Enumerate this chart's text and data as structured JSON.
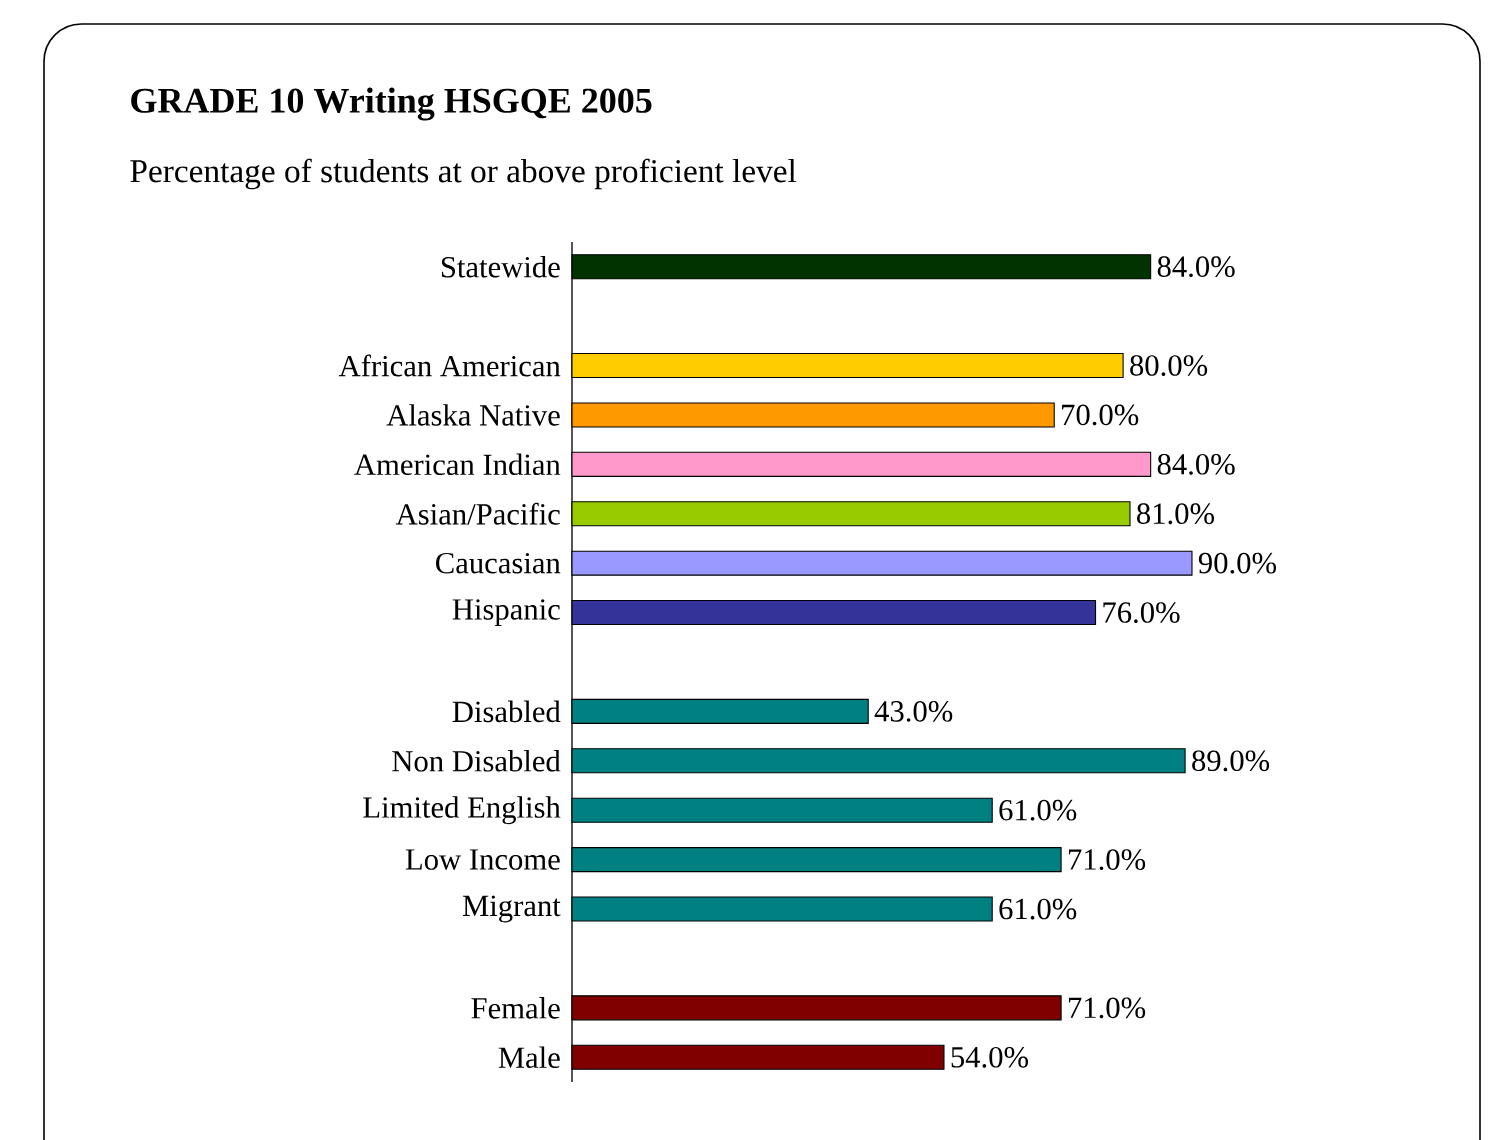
{
  "chart_data": {
    "type": "bar",
    "orientation": "horizontal",
    "title": "GRADE 10 Writing HSGQE 2005",
    "subtitle": "Percentage of students at or above proficient level",
    "categories": [
      "Statewide",
      null,
      "African American",
      "Alaska Native",
      "American Indian",
      "Asian/Pacific",
      "Caucasian",
      "Hispanic",
      null,
      "Disabled",
      "Non Disabled",
      "Limited English",
      "Low Income",
      "Migrant",
      null,
      "Female",
      "Male"
    ],
    "values": [
      84.0,
      null,
      80.0,
      70.0,
      84.0,
      81.0,
      90.0,
      76.0,
      null,
      43.0,
      89.0,
      61.0,
      71.0,
      61.0,
      null,
      71.0,
      54.0
    ],
    "colors": [
      "#003300",
      null,
      "#ffcc00",
      "#ff9900",
      "#ff99cc",
      "#99cc00",
      "#9999ff",
      "#333399",
      null,
      "#008080",
      "#008080",
      "#008080",
      "#008080",
      "#008080",
      null,
      "#800000",
      "#800000"
    ],
    "value_labels": [
      "84.0%",
      null,
      "80.0%",
      "70.0%",
      "84.0%",
      "81.0%",
      "90.0%",
      "76.0%",
      null,
      "43.0%",
      "89.0%",
      "61.0%",
      "71.0%",
      "61.0%",
      null,
      "71.0%",
      "54.0%"
    ]
  }
}
